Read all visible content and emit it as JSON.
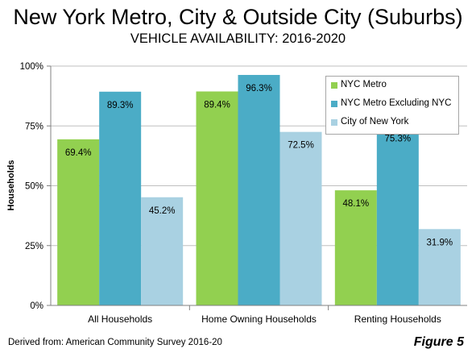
{
  "header": {
    "title": "New York Metro, City & Outside City (Suburbs)",
    "subtitle": "VEHICLE AVAILABILITY: 2016-2020"
  },
  "footer": {
    "source": "Derived from: American Community Survey 2016-20",
    "figure_label": "Figure 5"
  },
  "chart_data": {
    "type": "bar",
    "title": "New York Metro, City & Outside City (Suburbs)",
    "subtitle": "VEHICLE AVAILABILITY: 2016-2020",
    "xlabel": "",
    "ylabel": "Households",
    "ylim": [
      0,
      100
    ],
    "yticks": [
      "0%",
      "25%",
      "50%",
      "75%",
      "100%"
    ],
    "categories": [
      "All Households",
      "Home Owning Households",
      "Renting Households"
    ],
    "series": [
      {
        "name": "NYC Metro",
        "color": "#92d050",
        "values": [
          69.4,
          89.4,
          48.1
        ],
        "labels": [
          "69.4%",
          "89.4%",
          "48.1%"
        ]
      },
      {
        "name": "NYC Metro Excluding NYC",
        "color": "#4bacc6",
        "values": [
          89.3,
          96.3,
          75.3
        ],
        "labels": [
          "89.3%",
          "96.3%",
          "75.3%"
        ]
      },
      {
        "name": "City of New York",
        "color": "#a9d1e2",
        "values": [
          45.2,
          72.5,
          31.9
        ],
        "labels": [
          "45.2%",
          "72.5%",
          "31.9%"
        ]
      }
    ],
    "grid": true,
    "legend_position": "top-right"
  }
}
